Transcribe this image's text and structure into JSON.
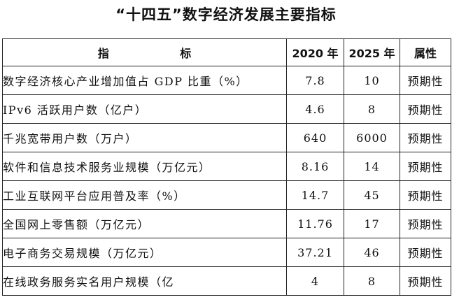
{
  "title": "“十四五”数字经济发展主要指标",
  "table": {
    "headers": {
      "name": "指 标",
      "year2020": "2020 年",
      "year2025": "2025 年",
      "attribute": "属性"
    },
    "rows": [
      {
        "name": "数字经济核心产业增加值占 GDP 比重（%）",
        "v2020": "7.8",
        "v2025": "10",
        "attribute": "预期性"
      },
      {
        "name": "IPv6 活跃用户数（亿户）",
        "v2020": "4.6",
        "v2025": "8",
        "attribute": "预期性"
      },
      {
        "name": "千兆宽带用户数（万户）",
        "v2020": "640",
        "v2025": "6000",
        "attribute": "预期性"
      },
      {
        "name": "软件和信息技术服务业规模（万亿元）",
        "v2020": "8.16",
        "v2025": "14",
        "attribute": "预期性"
      },
      {
        "name": "工业互联网平台应用普及率（%）",
        "v2020": "14.7",
        "v2025": "45",
        "attribute": "预期性"
      },
      {
        "name": "全国网上零售额（万亿元）",
        "v2020": "11.76",
        "v2025": "17",
        "attribute": "预期性"
      },
      {
        "name": "电子商务交易规模（万亿元）",
        "v2020": "37.21",
        "v2025": "46",
        "attribute": "预期性"
      },
      {
        "name": "在线政务服务实名用户规模（亿",
        "v2020": "4",
        "v2025": "8",
        "attribute": "预期性"
      }
    ]
  }
}
